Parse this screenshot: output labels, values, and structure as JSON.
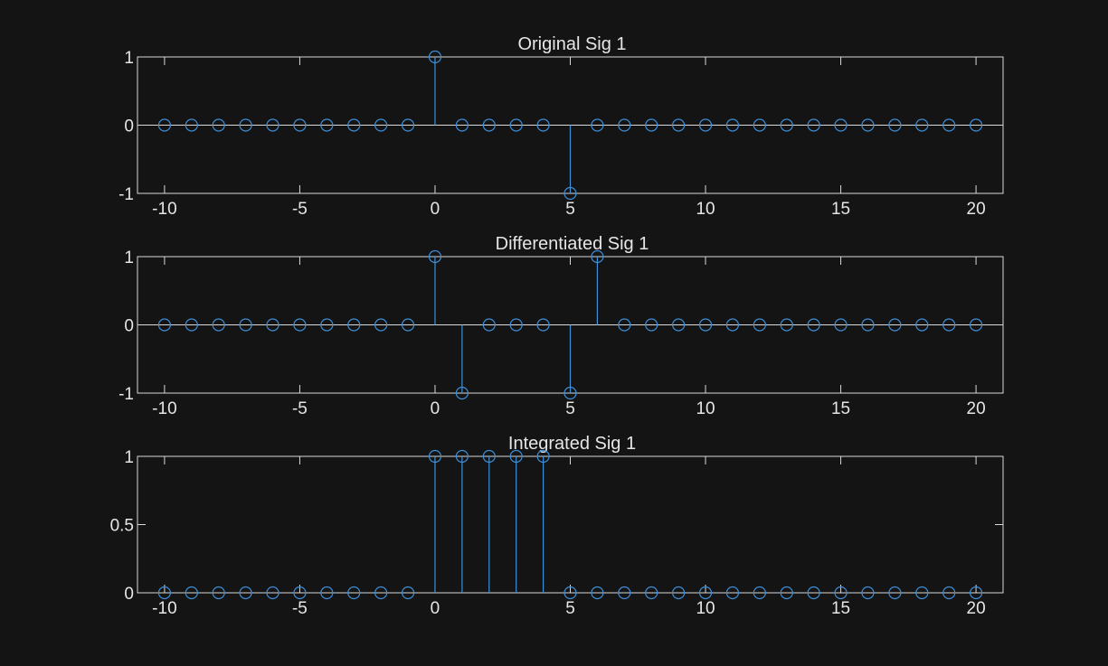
{
  "colors": {
    "background": "#141414",
    "axes_frame": "#d9d9d9",
    "text": "#e6e6e6",
    "stem": "#3d8fd9"
  },
  "chart_data": [
    {
      "type": "stem",
      "title": "Original Sig 1",
      "xlabel": "",
      "ylabel": "",
      "xlim": [
        -11,
        21
      ],
      "ylim": [
        -1,
        1
      ],
      "xticks": [
        -10,
        -5,
        0,
        5,
        10,
        15,
        20
      ],
      "xtick_labels": [
        "-10",
        "-5",
        "0",
        "5",
        "10",
        "15",
        "20"
      ],
      "yticks": [
        -1,
        0,
        1
      ],
      "ytick_labels": [
        "-1",
        "0",
        "1"
      ],
      "x": [
        -10,
        -9,
        -8,
        -7,
        -6,
        -5,
        -4,
        -3,
        -2,
        -1,
        0,
        1,
        2,
        3,
        4,
        5,
        6,
        7,
        8,
        9,
        10,
        11,
        12,
        13,
        14,
        15,
        16,
        17,
        18,
        19,
        20
      ],
      "y": [
        0,
        0,
        0,
        0,
        0,
        0,
        0,
        0,
        0,
        0,
        1,
        0,
        0,
        0,
        0,
        -1,
        0,
        0,
        0,
        0,
        0,
        0,
        0,
        0,
        0,
        0,
        0,
        0,
        0,
        0,
        0
      ]
    },
    {
      "type": "stem",
      "title": "Differentiated Sig 1",
      "xlabel": "",
      "ylabel": "",
      "xlim": [
        -11,
        21
      ],
      "ylim": [
        -1,
        1
      ],
      "xticks": [
        -10,
        -5,
        0,
        5,
        10,
        15,
        20
      ],
      "xtick_labels": [
        "-10",
        "-5",
        "0",
        "5",
        "10",
        "15",
        "20"
      ],
      "yticks": [
        -1,
        0,
        1
      ],
      "ytick_labels": [
        "-1",
        "0",
        "1"
      ],
      "x": [
        -10,
        -9,
        -8,
        -7,
        -6,
        -5,
        -4,
        -3,
        -2,
        -1,
        0,
        1,
        2,
        3,
        4,
        5,
        6,
        7,
        8,
        9,
        10,
        11,
        12,
        13,
        14,
        15,
        16,
        17,
        18,
        19,
        20
      ],
      "y": [
        0,
        0,
        0,
        0,
        0,
        0,
        0,
        0,
        0,
        0,
        1,
        -1,
        0,
        0,
        0,
        -1,
        1,
        0,
        0,
        0,
        0,
        0,
        0,
        0,
        0,
        0,
        0,
        0,
        0,
        0,
        0
      ]
    },
    {
      "type": "stem",
      "title": "Integrated Sig 1",
      "xlabel": "",
      "ylabel": "",
      "xlim": [
        -11,
        21
      ],
      "ylim": [
        0,
        1
      ],
      "xticks": [
        -10,
        -5,
        0,
        5,
        10,
        15,
        20
      ],
      "xtick_labels": [
        "-10",
        "-5",
        "0",
        "5",
        "10",
        "15",
        "20"
      ],
      "yticks": [
        0,
        0.5,
        1
      ],
      "ytick_labels": [
        "0",
        "0.5",
        "1"
      ],
      "x": [
        -10,
        -9,
        -8,
        -7,
        -6,
        -5,
        -4,
        -3,
        -2,
        -1,
        0,
        1,
        2,
        3,
        4,
        5,
        6,
        7,
        8,
        9,
        10,
        11,
        12,
        13,
        14,
        15,
        16,
        17,
        18,
        19,
        20
      ],
      "y": [
        0,
        0,
        0,
        0,
        0,
        0,
        0,
        0,
        0,
        0,
        1,
        1,
        1,
        1,
        1,
        0,
        0,
        0,
        0,
        0,
        0,
        0,
        0,
        0,
        0,
        0,
        0,
        0,
        0,
        0,
        0
      ]
    }
  ]
}
